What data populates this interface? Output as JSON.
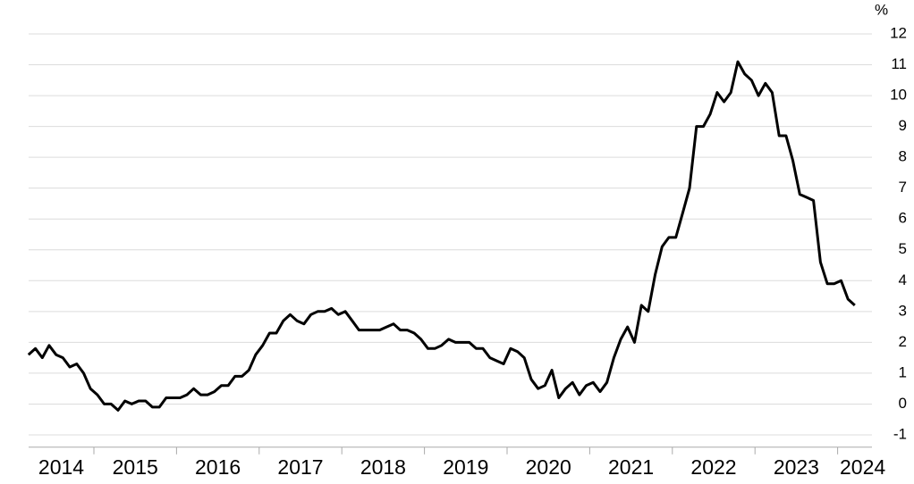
{
  "chart_data": {
    "type": "line",
    "unit": "%",
    "x": [
      "2014-03",
      "2014-04",
      "2014-05",
      "2014-06",
      "2014-07",
      "2014-08",
      "2014-09",
      "2014-10",
      "2014-11",
      "2014-12",
      "2015-01",
      "2015-02",
      "2015-03",
      "2015-04",
      "2015-05",
      "2015-06",
      "2015-07",
      "2015-08",
      "2015-09",
      "2015-10",
      "2015-11",
      "2015-12",
      "2016-01",
      "2016-02",
      "2016-03",
      "2016-04",
      "2016-05",
      "2016-06",
      "2016-07",
      "2016-08",
      "2016-09",
      "2016-10",
      "2016-11",
      "2016-12",
      "2017-01",
      "2017-02",
      "2017-03",
      "2017-04",
      "2017-05",
      "2017-06",
      "2017-07",
      "2017-08",
      "2017-09",
      "2017-10",
      "2017-11",
      "2017-12",
      "2018-01",
      "2018-02",
      "2018-03",
      "2018-04",
      "2018-05",
      "2018-06",
      "2018-07",
      "2018-08",
      "2018-09",
      "2018-10",
      "2018-11",
      "2018-12",
      "2019-01",
      "2019-02",
      "2019-03",
      "2019-04",
      "2019-05",
      "2019-06",
      "2019-07",
      "2019-08",
      "2019-09",
      "2019-10",
      "2019-11",
      "2019-12",
      "2020-01",
      "2020-02",
      "2020-03",
      "2020-04",
      "2020-05",
      "2020-06",
      "2020-07",
      "2020-08",
      "2020-09",
      "2020-10",
      "2020-11",
      "2020-12",
      "2021-01",
      "2021-02",
      "2021-03",
      "2021-04",
      "2021-05",
      "2021-06",
      "2021-07",
      "2021-08",
      "2021-09",
      "2021-10",
      "2021-11",
      "2021-12",
      "2022-01",
      "2022-02",
      "2022-03",
      "2022-04",
      "2022-05",
      "2022-06",
      "2022-07",
      "2022-08",
      "2022-09",
      "2022-10",
      "2022-11",
      "2022-12",
      "2023-01",
      "2023-02",
      "2023-03",
      "2023-04",
      "2023-05",
      "2023-06",
      "2023-07",
      "2023-08",
      "2023-09",
      "2023-10",
      "2023-11",
      "2023-12",
      "2024-01",
      "2024-02",
      "2024-03"
    ],
    "series": [
      {
        "color": "#000000",
        "values": [
          1.6,
          1.8,
          1.5,
          1.9,
          1.6,
          1.5,
          1.2,
          1.3,
          1.0,
          0.5,
          0.3,
          0.0,
          0.0,
          -0.2,
          0.1,
          0.0,
          0.1,
          0.1,
          -0.1,
          -0.1,
          0.2,
          0.2,
          0.2,
          0.3,
          0.5,
          0.3,
          0.3,
          0.4,
          0.6,
          0.6,
          0.9,
          0.9,
          1.1,
          1.6,
          1.9,
          2.3,
          2.3,
          2.7,
          2.9,
          2.7,
          2.6,
          2.9,
          3.0,
          3.0,
          3.1,
          2.9,
          3.0,
          2.7,
          2.4,
          2.4,
          2.4,
          2.4,
          2.5,
          2.6,
          2.4,
          2.4,
          2.3,
          2.1,
          1.8,
          1.8,
          1.9,
          2.1,
          2.0,
          2.0,
          2.0,
          1.8,
          1.8,
          1.5,
          1.4,
          1.3,
          1.8,
          1.7,
          1.5,
          0.8,
          0.5,
          0.6,
          1.1,
          0.2,
          0.5,
          0.7,
          0.3,
          0.6,
          0.7,
          0.4,
          0.7,
          1.5,
          2.1,
          2.5,
          2.0,
          3.2,
          3.0,
          4.2,
          5.1,
          5.4,
          5.4,
          6.2,
          7.0,
          9.0,
          9.0,
          9.4,
          10.1,
          9.8,
          10.1,
          11.1,
          10.7,
          10.5,
          10.0,
          10.4,
          10.1,
          8.7,
          8.7,
          7.9,
          6.8,
          6.7,
          6.6,
          4.6,
          3.9,
          3.9,
          4.0,
          3.4,
          3.2
        ]
      }
    ],
    "xticks": [
      "2014",
      "2015",
      "2016",
      "2017",
      "2018",
      "2019",
      "2020",
      "2021",
      "2022",
      "2023",
      "2024"
    ],
    "ylim": [
      -1.4,
      12
    ],
    "yticks": [
      -1,
      0,
      1,
      2,
      3,
      4,
      5,
      6,
      7,
      8,
      9,
      10,
      11,
      12
    ],
    "grid": true
  }
}
